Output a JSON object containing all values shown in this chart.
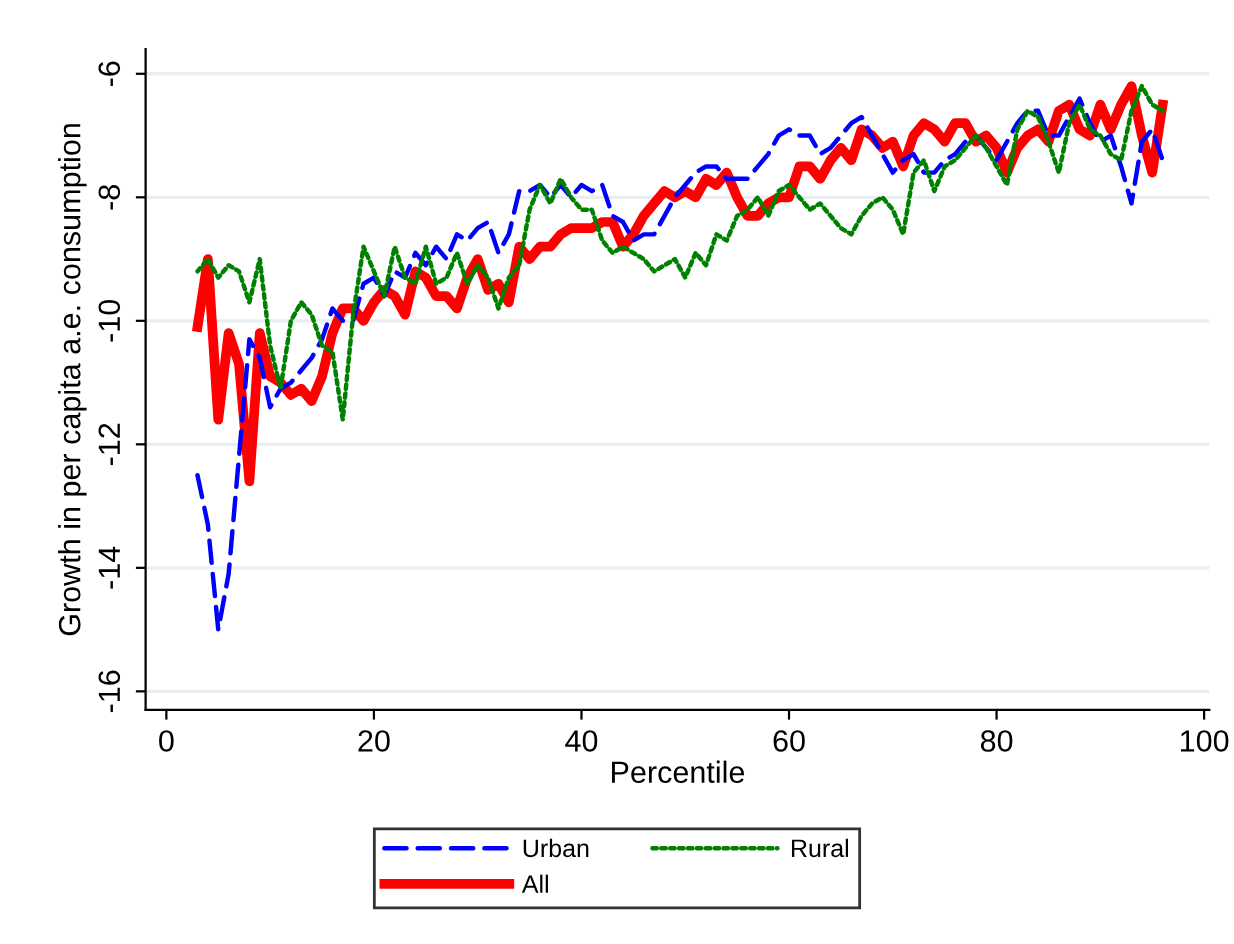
{
  "chart_data": {
    "type": "line",
    "xlabel": "Percentile",
    "ylabel": "Growth in per capita a.e. consumption",
    "x": [
      3,
      4,
      5,
      6,
      7,
      8,
      9,
      10,
      11,
      12,
      13,
      14,
      15,
      16,
      17,
      18,
      19,
      20,
      21,
      22,
      23,
      24,
      25,
      26,
      27,
      28,
      29,
      30,
      31,
      32,
      33,
      34,
      35,
      36,
      37,
      38,
      39,
      40,
      41,
      42,
      43,
      44,
      45,
      46,
      47,
      48,
      49,
      50,
      51,
      52,
      53,
      54,
      55,
      56,
      57,
      58,
      59,
      60,
      61,
      62,
      63,
      64,
      65,
      66,
      67,
      68,
      69,
      70,
      71,
      72,
      73,
      74,
      75,
      76,
      77,
      78,
      79,
      80,
      81,
      82,
      83,
      84,
      85,
      86,
      87,
      88,
      89,
      90,
      91,
      92,
      93,
      94,
      95,
      96
    ],
    "series": [
      {
        "name": "Urban",
        "color": "#0000ff",
        "line_style": "dashed",
        "values": [
          -12.5,
          -13.3,
          -15.0,
          -14.1,
          -12.2,
          -10.3,
          -10.6,
          -11.4,
          -11.1,
          -11.0,
          -10.8,
          -10.6,
          -10.3,
          -9.8,
          -10.0,
          -10.0,
          -9.4,
          -9.3,
          -9.6,
          -9.2,
          -9.3,
          -8.9,
          -9.1,
          -8.8,
          -9.0,
          -8.6,
          -8.7,
          -8.5,
          -8.4,
          -8.9,
          -8.6,
          -7.9,
          -7.9,
          -7.8,
          -8.0,
          -7.8,
          -8.0,
          -7.8,
          -7.9,
          -7.8,
          -8.3,
          -8.4,
          -8.7,
          -8.6,
          -8.6,
          -8.3,
          -8.0,
          -7.8,
          -7.6,
          -7.5,
          -7.5,
          -7.7,
          -7.7,
          -7.7,
          -7.5,
          -7.3,
          -7.0,
          -6.9,
          -7.0,
          -7.0,
          -7.3,
          -7.2,
          -7.0,
          -6.8,
          -6.7,
          -7.0,
          -7.3,
          -7.6,
          -7.4,
          -7.3,
          -7.6,
          -7.6,
          -7.4,
          -7.3,
          -7.1,
          -7.0,
          -7.2,
          -7.4,
          -7.1,
          -6.8,
          -6.6,
          -6.6,
          -7.0,
          -7.0,
          -6.7,
          -6.4,
          -6.8,
          -7.1,
          -7.0,
          -7.5,
          -8.1,
          -7.1,
          -6.9,
          -7.4
        ]
      },
      {
        "name": "Rural",
        "color": "#008000",
        "line_style": "dotted",
        "values": [
          -9.2,
          -9.0,
          -9.3,
          -9.1,
          -9.2,
          -9.7,
          -9.0,
          -10.4,
          -11.1,
          -10.0,
          -9.7,
          -9.9,
          -10.4,
          -10.5,
          -11.6,
          -9.9,
          -8.8,
          -9.2,
          -9.6,
          -8.8,
          -9.3,
          -9.4,
          -8.8,
          -9.4,
          -9.3,
          -8.9,
          -9.4,
          -9.1,
          -9.3,
          -9.8,
          -9.3,
          -9.1,
          -8.2,
          -7.8,
          -8.1,
          -7.7,
          -8.0,
          -8.2,
          -8.2,
          -8.7,
          -8.9,
          -8.8,
          -8.9,
          -9.0,
          -9.2,
          -9.1,
          -9.0,
          -9.3,
          -8.9,
          -9.1,
          -8.6,
          -8.7,
          -8.3,
          -8.2,
          -8.0,
          -8.3,
          -7.9,
          -7.8,
          -8.0,
          -8.2,
          -8.1,
          -8.3,
          -8.5,
          -8.6,
          -8.3,
          -8.1,
          -8.0,
          -8.2,
          -8.6,
          -7.6,
          -7.4,
          -7.9,
          -7.5,
          -7.4,
          -7.2,
          -7.0,
          -7.2,
          -7.5,
          -7.8,
          -6.9,
          -6.6,
          -6.7,
          -7.1,
          -7.6,
          -6.8,
          -6.5,
          -6.9,
          -7.0,
          -7.3,
          -7.4,
          -6.6,
          -6.2,
          -6.5,
          -6.6
        ]
      },
      {
        "name": "All",
        "color": "#ff0000",
        "line_style": "solid",
        "values": [
          -10.1,
          -9.0,
          -11.6,
          -10.2,
          -10.7,
          -12.6,
          -10.2,
          -10.9,
          -11.0,
          -11.2,
          -11.1,
          -11.3,
          -10.9,
          -10.2,
          -9.8,
          -9.8,
          -10.0,
          -9.7,
          -9.5,
          -9.6,
          -9.9,
          -9.2,
          -9.3,
          -9.6,
          -9.6,
          -9.8,
          -9.3,
          -9.0,
          -9.5,
          -9.4,
          -9.7,
          -8.8,
          -9.0,
          -8.8,
          -8.8,
          -8.6,
          -8.5,
          -8.5,
          -8.5,
          -8.4,
          -8.4,
          -8.8,
          -8.6,
          -8.3,
          -8.1,
          -7.9,
          -8.0,
          -7.9,
          -8.0,
          -7.7,
          -7.8,
          -7.6,
          -8.0,
          -8.3,
          -8.3,
          -8.1,
          -8.0,
          -8.0,
          -7.5,
          -7.5,
          -7.7,
          -7.4,
          -7.2,
          -7.4,
          -6.9,
          -7.0,
          -7.2,
          -7.1,
          -7.5,
          -7.0,
          -6.8,
          -6.9,
          -7.1,
          -6.8,
          -6.8,
          -7.1,
          -7.0,
          -7.2,
          -7.6,
          -7.2,
          -7.0,
          -6.9,
          -7.1,
          -6.6,
          -6.5,
          -6.9,
          -7.0,
          -6.5,
          -6.9,
          -6.5,
          -6.2,
          -7.0,
          -7.6,
          -6.5
        ]
      }
    ],
    "xlim": [
      -2,
      100.5
    ],
    "xticks": [
      0,
      20,
      40,
      60,
      80,
      100
    ],
    "ylim": [
      -16.3,
      -5.6
    ],
    "yticks": [
      -16,
      -14,
      -12,
      -10,
      -8,
      -6
    ],
    "grid": "y",
    "legend": "bottom",
    "marker": "none"
  }
}
